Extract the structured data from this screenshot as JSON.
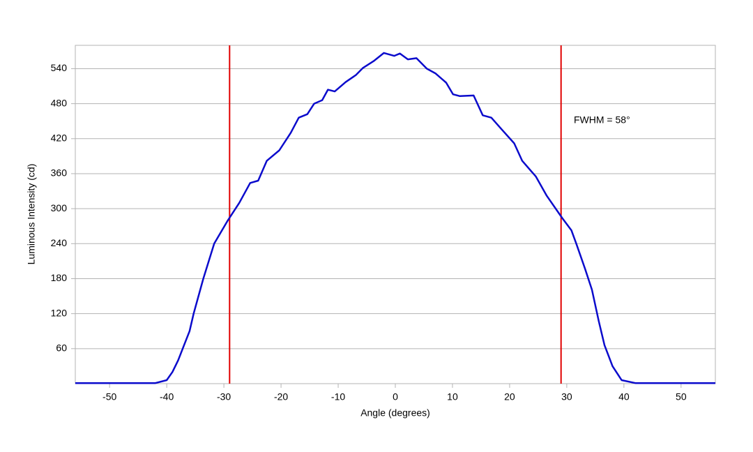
{
  "chart_data": {
    "type": "line",
    "x_label": "Angle (degrees)",
    "y_label": "Luminous Intensity (cd)",
    "annotation": "FWHM = 58°",
    "xlim": [
      -56,
      56
    ],
    "ylim": [
      0,
      580
    ],
    "xticks": [
      -50,
      -40,
      -30,
      -20,
      -10,
      0,
      10,
      20,
      30,
      40,
      50
    ],
    "yticks": [
      60,
      120,
      180,
      240,
      300,
      360,
      420,
      480,
      540
    ],
    "grid": true,
    "vlines": [
      -29,
      29
    ],
    "vline_color": "#e00000",
    "series": [
      {
        "color": "#0b0bcc",
        "x": [
          -56,
          -42,
          -40,
          -39,
          -38,
          -37,
          -36,
          -35.3,
          -33.6,
          -31.7,
          -29.3,
          -27.3,
          -25.4,
          -24,
          -22.5,
          -20.3,
          -18.3,
          -16.9,
          -15.4,
          -14.2,
          -12.8,
          -11.8,
          -10.6,
          -8.7,
          -6.9,
          -5.7,
          -3.8,
          -2,
          -0.2,
          0.8,
          2.2,
          3.7,
          5.5,
          7,
          8.9,
          10.1,
          11.3,
          13.7,
          15.3,
          16.8,
          18.6,
          20.8,
          22.2,
          24.6,
          26.5,
          29.2,
          30.8,
          31.7,
          33.2,
          34.4,
          35.6,
          36.6,
          38,
          39.6,
          42,
          56
        ],
        "values": [
          1,
          1,
          6,
          20,
          40,
          65,
          90,
          120,
          180,
          240,
          280,
          310,
          344,
          348,
          382,
          400,
          430,
          456,
          462,
          480,
          486,
          504,
          501,
          517,
          529,
          541,
          553,
          567,
          562,
          566,
          556,
          558,
          540,
          532,
          516,
          496,
          493,
          494,
          460,
          456,
          436,
          412,
          382,
          355,
          322,
          284,
          263,
          239,
          197,
          161,
          107,
          66,
          30,
          6,
          1,
          1
        ]
      }
    ]
  }
}
